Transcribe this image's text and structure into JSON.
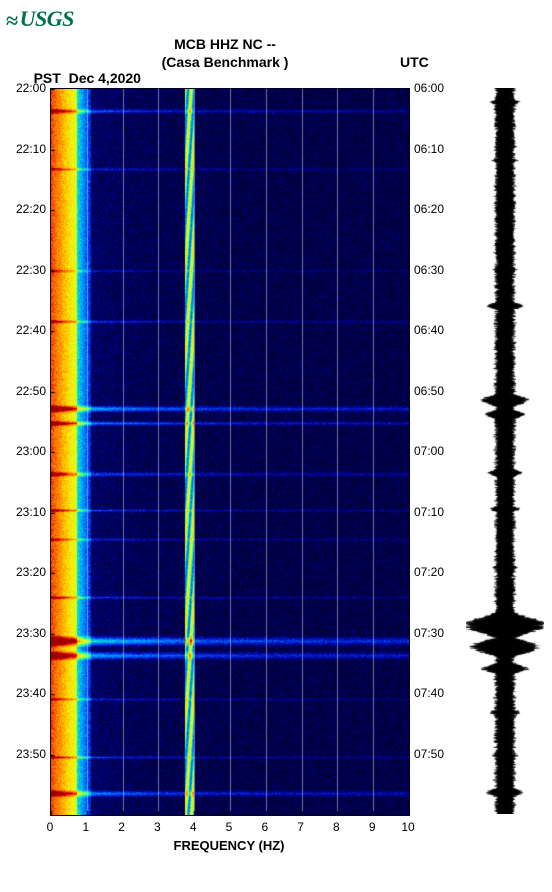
{
  "logo_text": "USGS",
  "title_line1": "MCB HHZ NC --",
  "title_line2": "(Casa Benchmark )",
  "date_label": "Dec 4,2020",
  "tz_left": "PST",
  "tz_right": "UTC",
  "x_axis_label": "FREQUENCY (HZ)",
  "x_ticks": [
    "0",
    "1",
    "2",
    "3",
    "4",
    "5",
    "6",
    "7",
    "8",
    "9",
    "10"
  ],
  "pst_ticks": [
    "22:00",
    "22:10",
    "22:20",
    "22:30",
    "22:40",
    "22:50",
    "23:00",
    "23:10",
    "23:20",
    "23:30",
    "23:40",
    "23:50"
  ],
  "utc_ticks": [
    "06:00",
    "06:10",
    "06:20",
    "06:30",
    "06:40",
    "06:50",
    "07:00",
    "07:10",
    "07:20",
    "07:30",
    "07:40",
    "07:50"
  ],
  "tick_fraction_step": 0.0833333333,
  "colors": {
    "background": "#ffffff",
    "logo": "#006f4a",
    "text": "#000000",
    "grid": "#e6e6ff"
  },
  "colormap": [
    "#000028",
    "#00004a",
    "#00008f",
    "#0020d0",
    "#0060ff",
    "#00a0ff",
    "#00e0d0",
    "#40ff90",
    "#a0ff40",
    "#e0ff20",
    "#ffe000",
    "#ffa000",
    "#ff6000",
    "#e00000",
    "#a00000"
  ],
  "spectrogram": {
    "freq_min": 0,
    "freq_max": 10,
    "cols": 100,
    "rows": 300,
    "base_level_by_x": "decay_from_left_then_low",
    "hot_band_x": [
      0.15,
      0.55
    ],
    "persistent_line_x": 3.85,
    "gridlines_x": [
      1,
      2,
      3,
      4,
      5,
      6,
      7,
      8,
      9
    ],
    "transients": [
      {
        "t": 0.03,
        "strength": 0.35,
        "width": 3
      },
      {
        "t": 0.11,
        "strength": 0.25,
        "width": 2
      },
      {
        "t": 0.25,
        "strength": 0.2,
        "width": 2
      },
      {
        "t": 0.32,
        "strength": 0.3,
        "width": 2
      },
      {
        "t": 0.44,
        "strength": 0.55,
        "width": 4
      },
      {
        "t": 0.46,
        "strength": 0.45,
        "width": 3
      },
      {
        "t": 0.53,
        "strength": 0.35,
        "width": 3
      },
      {
        "t": 0.58,
        "strength": 0.3,
        "width": 2
      },
      {
        "t": 0.62,
        "strength": 0.25,
        "width": 2
      },
      {
        "t": 0.7,
        "strength": 0.3,
        "width": 2
      },
      {
        "t": 0.76,
        "strength": 0.65,
        "width": 6
      },
      {
        "t": 0.78,
        "strength": 0.55,
        "width": 5
      },
      {
        "t": 0.84,
        "strength": 0.25,
        "width": 2
      },
      {
        "t": 0.92,
        "strength": 0.3,
        "width": 2
      },
      {
        "t": 0.97,
        "strength": 0.45,
        "width": 4
      }
    ]
  },
  "waveform": {
    "samples": 1200,
    "base_amp": 0.22,
    "seed": 7,
    "events": [
      {
        "t": 0.02,
        "amp": 0.35,
        "width": 0.008
      },
      {
        "t": 0.1,
        "amp": 0.3,
        "width": 0.006
      },
      {
        "t": 0.18,
        "amp": 0.25,
        "width": 0.005
      },
      {
        "t": 0.25,
        "amp": 0.28,
        "width": 0.006
      },
      {
        "t": 0.3,
        "amp": 0.42,
        "width": 0.01
      },
      {
        "t": 0.43,
        "amp": 0.55,
        "width": 0.015
      },
      {
        "t": 0.45,
        "amp": 0.48,
        "width": 0.012
      },
      {
        "t": 0.53,
        "amp": 0.4,
        "width": 0.01
      },
      {
        "t": 0.58,
        "amp": 0.35,
        "width": 0.008
      },
      {
        "t": 0.66,
        "amp": 0.3,
        "width": 0.006
      },
      {
        "t": 0.74,
        "amp": 0.95,
        "width": 0.025
      },
      {
        "t": 0.77,
        "amp": 0.8,
        "width": 0.02
      },
      {
        "t": 0.8,
        "amp": 0.55,
        "width": 0.012
      },
      {
        "t": 0.86,
        "amp": 0.35,
        "width": 0.008
      },
      {
        "t": 0.92,
        "amp": 0.32,
        "width": 0.006
      },
      {
        "t": 0.97,
        "amp": 0.45,
        "width": 0.01
      }
    ]
  }
}
